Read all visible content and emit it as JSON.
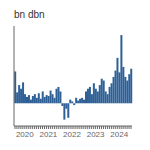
{
  "chart_data": {
    "type": "bar",
    "title": "bn dbn",
    "categories": [
      null,
      null,
      null,
      null,
      null,
      "2020",
      null,
      null,
      null,
      null,
      null,
      null,
      null,
      null,
      null,
      null,
      null,
      "2021",
      null,
      null,
      null,
      null,
      null,
      null,
      null,
      null,
      null,
      null,
      null,
      "2022",
      null,
      null,
      null,
      null,
      null,
      null,
      null,
      null,
      null,
      null,
      null,
      "2023",
      null,
      null,
      null,
      null,
      null,
      null,
      null,
      null,
      null,
      null,
      null,
      "2024",
      null,
      null,
      null,
      null,
      null,
      null
    ],
    "values": [
      3.5,
      1.2,
      2.0,
      1.6,
      2.3,
      1.0,
      0.7,
      0.9,
      0.4,
      0.8,
      1.0,
      0.6,
      1.1,
      0.5,
      1.3,
      0.7,
      0.9,
      0.8,
      1.4,
      1.0,
      0.6,
      1.6,
      1.8,
      1.3,
      -0.3,
      -1.8,
      -0.6,
      -1.6,
      0.4,
      0.2,
      -0.2,
      0.6,
      0.3,
      0.5,
      0.6,
      0.4,
      1.3,
      1.6,
      1.8,
      1.0,
      2.2,
      1.6,
      1.3,
      2.0,
      2.7,
      2.5,
      1.3,
      1.0,
      1.8,
      2.2,
      2.9,
      3.6,
      5.0,
      3.4,
      7.5,
      4.0,
      2.9,
      2.5,
      3.2,
      3.8
    ],
    "color": "#2e6096",
    "ylim": [
      -2.5,
      8.5
    ],
    "grid": false,
    "tick_labels": "x"
  }
}
